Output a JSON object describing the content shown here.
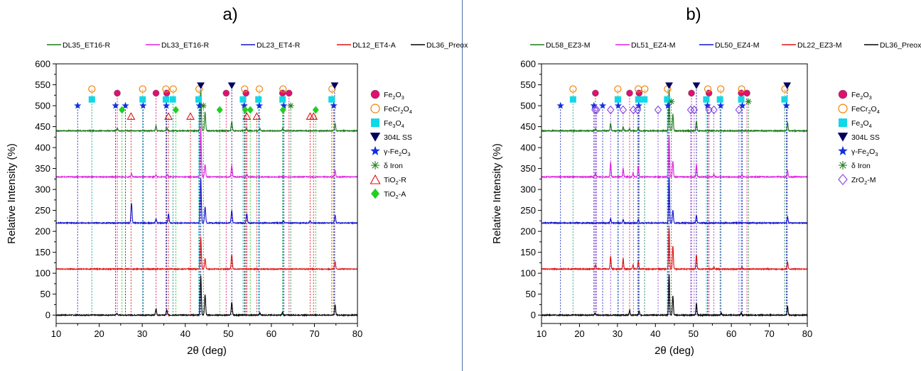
{
  "chart_data": [
    {
      "type": "line",
      "panel_label": "a)",
      "xlabel": "2θ (deg)",
      "ylabel": "Relative Intensity (%)",
      "xlim": [
        10,
        80
      ],
      "ylim": [
        -20,
        600
      ],
      "xticks": [
        10,
        20,
        30,
        40,
        50,
        60,
        70,
        80
      ],
      "yticks": [
        0,
        50,
        100,
        150,
        200,
        250,
        300,
        350,
        400,
        450,
        500,
        550,
        600
      ],
      "grid": false,
      "legend_position": "top",
      "series": [
        {
          "name": "DL35_ET16-R",
          "color": "#1a7a1a",
          "baseline": 440,
          "peaks": [
            [
              24.2,
              6
            ],
            [
              33.2,
              12
            ],
            [
              35.7,
              8
            ],
            [
              43.6,
              98
            ],
            [
              44.6,
              45
            ],
            [
              50.8,
              22
            ],
            [
              54.2,
              6
            ],
            [
              57.3,
              5
            ],
            [
              62.6,
              5
            ],
            [
              74.8,
              18
            ]
          ]
        },
        {
          "name": "DL33_ET16-R",
          "color": "#e020e0",
          "baseline": 330,
          "peaks": [
            [
              27.5,
              8
            ],
            [
              33.2,
              5
            ],
            [
              35.8,
              6
            ],
            [
              43.6,
              118
            ],
            [
              44.6,
              30
            ],
            [
              50.8,
              28
            ],
            [
              54.3,
              6
            ],
            [
              74.8,
              16
            ]
          ]
        },
        {
          "name": "DL23_ET4-R",
          "color": "#1010d0",
          "baseline": 220,
          "peaks": [
            [
              27.5,
              48
            ],
            [
              33.2,
              10
            ],
            [
              36.1,
              22
            ],
            [
              43.6,
              108
            ],
            [
              44.6,
              38
            ],
            [
              50.8,
              30
            ],
            [
              54.3,
              22
            ],
            [
              62.8,
              5
            ],
            [
              69.0,
              5
            ],
            [
              74.8,
              18
            ]
          ]
        },
        {
          "name": "DL12_ET4-A",
          "color": "#e01010",
          "baseline": 110,
          "peaks": [
            [
              43.6,
              78
            ],
            [
              44.6,
              25
            ],
            [
              50.8,
              35
            ],
            [
              74.8,
              18
            ]
          ]
        },
        {
          "name": "DL36_Preox",
          "color": "#000000",
          "baseline": 0,
          "peaks": [
            [
              24.1,
              4
            ],
            [
              33.2,
              15
            ],
            [
              35.7,
              12
            ],
            [
              43.6,
              95
            ],
            [
              44.6,
              48
            ],
            [
              50.8,
              30
            ],
            [
              57.3,
              5
            ],
            [
              62.6,
              6
            ],
            [
              74.8,
              25
            ]
          ]
        }
      ],
      "phases": [
        {
          "label": "Fe2O3",
          "label_main": "Fe",
          "sub1": "2",
          "mid": "O",
          "sub2": "3",
          "tail": "",
          "color": "#e01070",
          "marker": "circle",
          "line_color": "#e01070",
          "y": 530,
          "positions": [
            24.2,
            33.2,
            35.7,
            49.5,
            54.1,
            62.6,
            64.1
          ]
        },
        {
          "label": "FeCr2O4",
          "label_main": "FeCr",
          "sub1": "2",
          "mid": "O",
          "sub2": "4",
          "tail": "",
          "color": "#f08000",
          "marker": "open-circle",
          "line_color": "#f08000",
          "y": 540,
          "positions": [
            18.3,
            30.1,
            35.5,
            37.2,
            43.2,
            53.8,
            57.2,
            62.7,
            74.1
          ]
        },
        {
          "label": "Fe3O4",
          "label_main": "Fe",
          "sub1": "3",
          "mid": "O",
          "sub2": "4",
          "tail": "",
          "color": "#10d8e8",
          "marker": "square",
          "line_color": "#10c8d8",
          "y": 515,
          "positions": [
            18.3,
            30.1,
            35.5,
            37.1,
            43.1,
            53.4,
            57.0,
            62.6,
            74.0
          ]
        },
        {
          "label": "304L SS",
          "label_main": "304L SS",
          "sub1": "",
          "mid": "",
          "sub2": "",
          "tail": "",
          "color": "#000060",
          "marker": "down-triangle",
          "line_color": "#000080",
          "y": 548,
          "positions": [
            43.6,
            50.8,
            74.7
          ]
        },
        {
          "label": "γ-Fe2O3",
          "label_main": "γ-Fe",
          "sub1": "2",
          "mid": "O",
          "sub2": "3",
          "tail": "",
          "color": "#1030e0",
          "marker": "star",
          "line_color": "#1020c0",
          "y": 500,
          "positions": [
            15.0,
            23.8,
            26.1,
            30.2,
            35.6,
            43.3,
            53.7,
            57.2,
            62.9,
            74.5
          ]
        },
        {
          "label": "δ Iron",
          "label_main": "δ Iron",
          "sub1": "",
          "mid": "",
          "sub2": "",
          "tail": "",
          "color": "#208020",
          "marker": "asterisk",
          "line_color": "#208020",
          "y": 500,
          "positions": [
            44.2,
            64.5
          ]
        },
        {
          "label": "TiO2-R",
          "label_main": "TiO",
          "sub1": "2",
          "mid": "-R",
          "sub2": "",
          "tail": "",
          "color": "#e01010",
          "marker": "open-triangle",
          "line_color": "#e01010",
          "y": 475,
          "positions": [
            27.4,
            36.1,
            41.2,
            54.3,
            56.6,
            69.0,
            69.8
          ]
        },
        {
          "label": "TiO2-A",
          "label_main": "TiO",
          "sub1": "2",
          "mid": "-A",
          "sub2": "",
          "tail": "",
          "color": "#20d020",
          "marker": "diamond",
          "line_color": "#20c020",
          "y": 490,
          "positions": [
            25.3,
            37.8,
            48.0,
            53.9,
            55.1,
            62.7,
            70.3
          ]
        }
      ]
    },
    {
      "type": "line",
      "panel_label": "b)",
      "xlabel": "2θ (deg)",
      "ylabel": "Relative Intensity (%)",
      "xlim": [
        10,
        80
      ],
      "ylim": [
        -20,
        600
      ],
      "xticks": [
        10,
        20,
        30,
        40,
        50,
        60,
        70,
        80
      ],
      "yticks": [
        0,
        50,
        100,
        150,
        200,
        250,
        300,
        350,
        400,
        450,
        500,
        550,
        600
      ],
      "grid": false,
      "legend_position": "top",
      "series": [
        {
          "name": "DL58_EZ3-M",
          "color": "#1a7a1a",
          "baseline": 440,
          "peaks": [
            [
              24.2,
              5
            ],
            [
              28.2,
              18
            ],
            [
              31.5,
              10
            ],
            [
              33.2,
              5
            ],
            [
              35.5,
              6
            ],
            [
              43.6,
              100
            ],
            [
              44.6,
              40
            ],
            [
              50.8,
              24
            ],
            [
              74.8,
              20
            ]
          ]
        },
        {
          "name": "DL51_EZ4-M",
          "color": "#e020e0",
          "baseline": 330,
          "peaks": [
            [
              24.2,
              10
            ],
            [
              28.2,
              35
            ],
            [
              31.5,
              20
            ],
            [
              34.1,
              10
            ],
            [
              35.5,
              25
            ],
            [
              43.6,
              98
            ],
            [
              44.6,
              38
            ],
            [
              50.8,
              30
            ],
            [
              55.4,
              6
            ],
            [
              62.8,
              6
            ],
            [
              74.8,
              16
            ]
          ]
        },
        {
          "name": "DL50_EZ4-M",
          "color": "#1010d0",
          "baseline": 220,
          "peaks": [
            [
              28.2,
              10
            ],
            [
              31.5,
              8
            ],
            [
              35.5,
              8
            ],
            [
              43.6,
              112
            ],
            [
              44.6,
              30
            ],
            [
              50.8,
              18
            ],
            [
              74.8,
              15
            ]
          ]
        },
        {
          "name": "DL22_EZ3-M",
          "color": "#e01010",
          "baseline": 110,
          "peaks": [
            [
              24.2,
              10
            ],
            [
              28.2,
              30
            ],
            [
              31.5,
              25
            ],
            [
              34.1,
              10
            ],
            [
              35.5,
              18
            ],
            [
              43.6,
              100
            ],
            [
              44.6,
              55
            ],
            [
              50.8,
              35
            ],
            [
              55.4,
              5
            ],
            [
              62.8,
              5
            ],
            [
              74.8,
              18
            ]
          ]
        },
        {
          "name": "DL36_Preox",
          "color": "#000000",
          "baseline": 0,
          "peaks": [
            [
              24.1,
              5
            ],
            [
              33.2,
              12
            ],
            [
              35.7,
              10
            ],
            [
              43.6,
              98
            ],
            [
              44.6,
              45
            ],
            [
              50.8,
              28
            ],
            [
              57.3,
              5
            ],
            [
              62.6,
              5
            ],
            [
              74.8,
              22
            ]
          ]
        }
      ],
      "phases": [
        {
          "label": "Fe2O3",
          "label_main": "Fe",
          "sub1": "2",
          "mid": "O",
          "sub2": "3",
          "tail": "",
          "color": "#e01070",
          "marker": "circle",
          "line_color": "#e01070",
          "y": 530,
          "positions": [
            24.2,
            33.2,
            35.7,
            49.5,
            54.1,
            62.6,
            64.1
          ]
        },
        {
          "label": "FeCr2O4",
          "label_main": "FeCr",
          "sub1": "2",
          "mid": "O",
          "sub2": "4",
          "tail": "",
          "color": "#f08000",
          "marker": "open-circle",
          "line_color": "#f08000",
          "y": 540,
          "positions": [
            18.3,
            30.1,
            35.5,
            37.2,
            43.2,
            53.8,
            57.2,
            62.7,
            74.1
          ]
        },
        {
          "label": "Fe3O4",
          "label_main": "Fe",
          "sub1": "3",
          "mid": "O",
          "sub2": "4",
          "tail": "",
          "color": "#10d8e8",
          "marker": "square",
          "line_color": "#10c8d8",
          "y": 515,
          "positions": [
            18.3,
            30.1,
            35.5,
            37.1,
            43.1,
            53.4,
            57.0,
            62.6,
            74.0
          ]
        },
        {
          "label": "304L SS",
          "label_main": "304L SS",
          "sub1": "",
          "mid": "",
          "sub2": "",
          "tail": "",
          "color": "#000060",
          "marker": "down-triangle",
          "line_color": "#000080",
          "y": 548,
          "positions": [
            43.6,
            50.8,
            74.7
          ]
        },
        {
          "label": "γ-Fe2O3",
          "label_main": "γ-Fe",
          "sub1": "2",
          "mid": "O",
          "sub2": "3",
          "tail": "",
          "color": "#1030e0",
          "marker": "star",
          "line_color": "#1020c0",
          "y": 500,
          "positions": [
            15.0,
            23.8,
            26.1,
            30.2,
            35.6,
            43.3,
            53.7,
            57.2,
            62.9,
            74.5
          ]
        },
        {
          "label": "δ Iron",
          "label_main": "δ Iron",
          "sub1": "",
          "mid": "",
          "sub2": "",
          "tail": "",
          "color": "#208020",
          "marker": "asterisk",
          "line_color": "#208020",
          "y": 510,
          "positions": [
            44.2,
            64.5
          ]
        },
        {
          "label": "ZrO2-M",
          "label_main": "ZrO",
          "sub1": "2",
          "mid": "-M",
          "sub2": "",
          "tail": "",
          "color": "#8040e0",
          "marker": "open-diamond",
          "line_color": "#8040e0",
          "y": 490,
          "positions": [
            24.1,
            24.5,
            28.2,
            31.5,
            34.2,
            35.3,
            40.7,
            49.3,
            50.2,
            54.1,
            55.4,
            62.0
          ]
        }
      ]
    }
  ]
}
